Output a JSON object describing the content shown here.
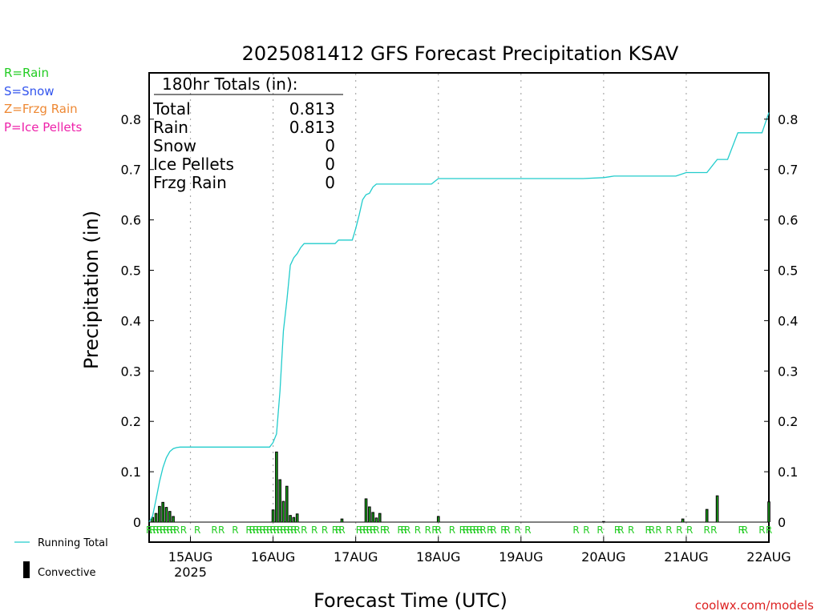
{
  "chart_data": {
    "type": "bar+line",
    "title": "2025081412 GFS Forecast Precipitation KSAV",
    "xlabel": "Forecast Time (UTC)",
    "ylabel": "Precipitation (in)",
    "ylim": [
      0,
      0.9
    ],
    "y_ticks": [
      "0",
      "0.1",
      "0.2",
      "0.3",
      "0.4",
      "0.5",
      "0.6",
      "0.7",
      "0.8"
    ],
    "x_ticks": [
      {
        "label": "15AUG",
        "sub": "2025",
        "hour": 24
      },
      {
        "label": "16AUG",
        "sub": "",
        "hour": 48
      },
      {
        "label": "17AUG",
        "sub": "",
        "hour": 72
      },
      {
        "label": "18AUG",
        "sub": "",
        "hour": 96
      },
      {
        "label": "19AUG",
        "sub": "",
        "hour": 120
      },
      {
        "label": "20AUG",
        "sub": "",
        "hour": 144
      },
      {
        "label": "21AUG",
        "sub": "",
        "hour": 168
      },
      {
        "label": "22AUG",
        "sub": "",
        "hour": 192
      }
    ],
    "xlim_hours": [
      12,
      192
    ],
    "grid": "vertical-dotted",
    "legend_types": [
      {
        "text": "R=Rain",
        "color": "#22cc22"
      },
      {
        "text": "S=Snow",
        "color": "#3355ee"
      },
      {
        "text": "Z=Frzg Rain",
        "color": "#ee8833"
      },
      {
        "text": "P=Ice Pellets",
        "color": "#ee22aa"
      }
    ],
    "legend_series": [
      {
        "text": "Running Total",
        "color": "#22cccc"
      },
      {
        "text": "Convective",
        "color": "#000000"
      }
    ],
    "totals": {
      "heading": "180hr Totals (in):",
      "rows": [
        {
          "label": "Total",
          "value": "0.813"
        },
        {
          "label": "Rain",
          "value": "0.813"
        },
        {
          "label": "Snow",
          "value": "0"
        },
        {
          "label": "Ice Pellets",
          "value": "0"
        },
        {
          "label": "Frzg Rain",
          "value": "0"
        }
      ]
    },
    "running_total": {
      "name": "Running Total",
      "hours": [
        12,
        13,
        14,
        15,
        16,
        17,
        18,
        19,
        20,
        21,
        22,
        24,
        36,
        47,
        48,
        49,
        50,
        51,
        52,
        53,
        54,
        55,
        56,
        57,
        60,
        66,
        67,
        70,
        71,
        72,
        73,
        74,
        75,
        76,
        77,
        78,
        81,
        84,
        90,
        93,
        94,
        96,
        102,
        108,
        114,
        120,
        126,
        132,
        138,
        144,
        147,
        150,
        156,
        162,
        165,
        168,
        171,
        174,
        177,
        180,
        183,
        186,
        189,
        190,
        192
      ],
      "values": [
        0,
        0.012,
        0.045,
        0.08,
        0.108,
        0.128,
        0.14,
        0.146,
        0.148,
        0.149,
        0.149,
        0.149,
        0.149,
        0.149,
        0.158,
        0.175,
        0.26,
        0.38,
        0.44,
        0.51,
        0.525,
        0.533,
        0.545,
        0.553,
        0.553,
        0.553,
        0.56,
        0.56,
        0.56,
        0.583,
        0.61,
        0.64,
        0.65,
        0.653,
        0.665,
        0.671,
        0.671,
        0.671,
        0.671,
        0.671,
        0.671,
        0.682,
        0.682,
        0.682,
        0.682,
        0.682,
        0.682,
        0.682,
        0.682,
        0.684,
        0.687,
        0.687,
        0.687,
        0.687,
        0.687,
        0.694,
        0.694,
        0.694,
        0.72,
        0.72,
        0.773,
        0.773,
        0.773,
        0.773,
        0.813
      ]
    },
    "precip_bars": {
      "name": "Convective",
      "hours": [
        13,
        14,
        15,
        16,
        17,
        18,
        19,
        48,
        49,
        50,
        51,
        52,
        53,
        54,
        55,
        68,
        75,
        76,
        77,
        78,
        79,
        96,
        144,
        167,
        174,
        177,
        192
      ],
      "values": [
        0.01,
        0.018,
        0.032,
        0.04,
        0.03,
        0.022,
        0.012,
        0.025,
        0.14,
        0.085,
        0.042,
        0.072,
        0.014,
        0.01,
        0.017,
        0.007,
        0.047,
        0.031,
        0.02,
        0.009,
        0.018,
        0.012,
        0.002,
        0.007,
        0.026,
        0.053,
        0.041
      ]
    },
    "ptype_markers": {
      "symbol": "R",
      "hours": [
        12,
        13,
        14,
        15,
        16,
        17,
        18,
        19,
        20,
        22,
        26,
        31,
        33,
        37,
        41,
        42,
        43,
        44,
        45,
        46,
        47,
        48,
        49,
        50,
        51,
        52,
        53,
        54,
        55,
        57,
        60,
        63,
        66,
        67,
        68,
        73,
        74,
        75,
        76,
        77,
        78,
        80,
        81,
        85,
        86,
        87,
        90,
        93,
        95,
        96,
        100,
        103,
        104,
        105,
        106,
        107,
        108,
        109,
        111,
        112,
        115,
        116,
        119,
        122,
        136,
        139,
        143,
        148,
        149,
        152,
        157,
        158,
        160,
        163,
        166,
        169,
        174,
        176,
        184,
        185,
        190,
        192
      ]
    },
    "watermark": "coolwx.com/models"
  }
}
